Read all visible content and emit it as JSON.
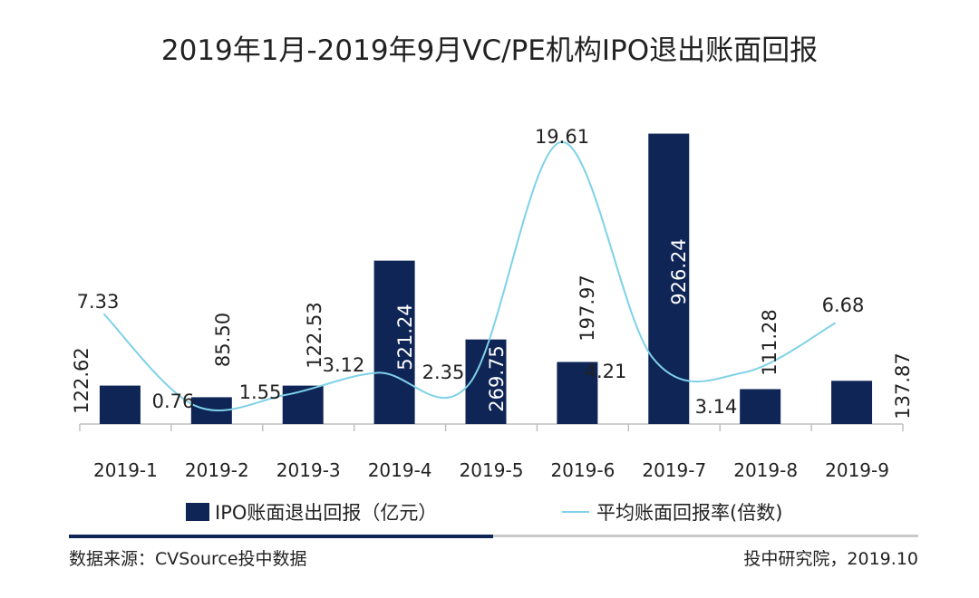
{
  "chart_data": {
    "type": "bar",
    "title": "2019年1月-2019年9月VC/PE机构IPO退出账面回报",
    "categories": [
      "2019-1",
      "2019-2",
      "2019-3",
      "2019-4",
      "2019-5",
      "2019-6",
      "2019-7",
      "2019-8",
      "2019-9"
    ],
    "series": [
      {
        "name": "IPO账面退出回报（亿元）",
        "type": "bar",
        "color": "#0f2556",
        "values": [
          122.62,
          85.5,
          122.53,
          521.24,
          269.75,
          197.97,
          926.24,
          111.28,
          137.87
        ],
        "labels": [
          "122.62",
          "85.50",
          "122.53",
          "521.24",
          "269.75",
          "197.97",
          "926.24",
          "111.28",
          "137.87"
        ]
      },
      {
        "name": "平均账面回报率(倍数)",
        "type": "line",
        "color": "#7fd1e8",
        "values": [
          7.33,
          0.76,
          1.55,
          3.12,
          2.35,
          19.61,
          4.21,
          3.14,
          6.68
        ],
        "labels": [
          "7.33",
          "0.76",
          "1.55",
          "3.12",
          "2.35",
          "19.61",
          "4.21",
          "3.14",
          "6.68"
        ]
      }
    ],
    "ylim_bars": [
      0,
      1000
    ],
    "ylim_line": [
      -1,
      22
    ],
    "legend_position": "bottom"
  },
  "footer": {
    "source": "数据来源：CVSource投中数据",
    "credit": "投中研究院，2019.10"
  }
}
